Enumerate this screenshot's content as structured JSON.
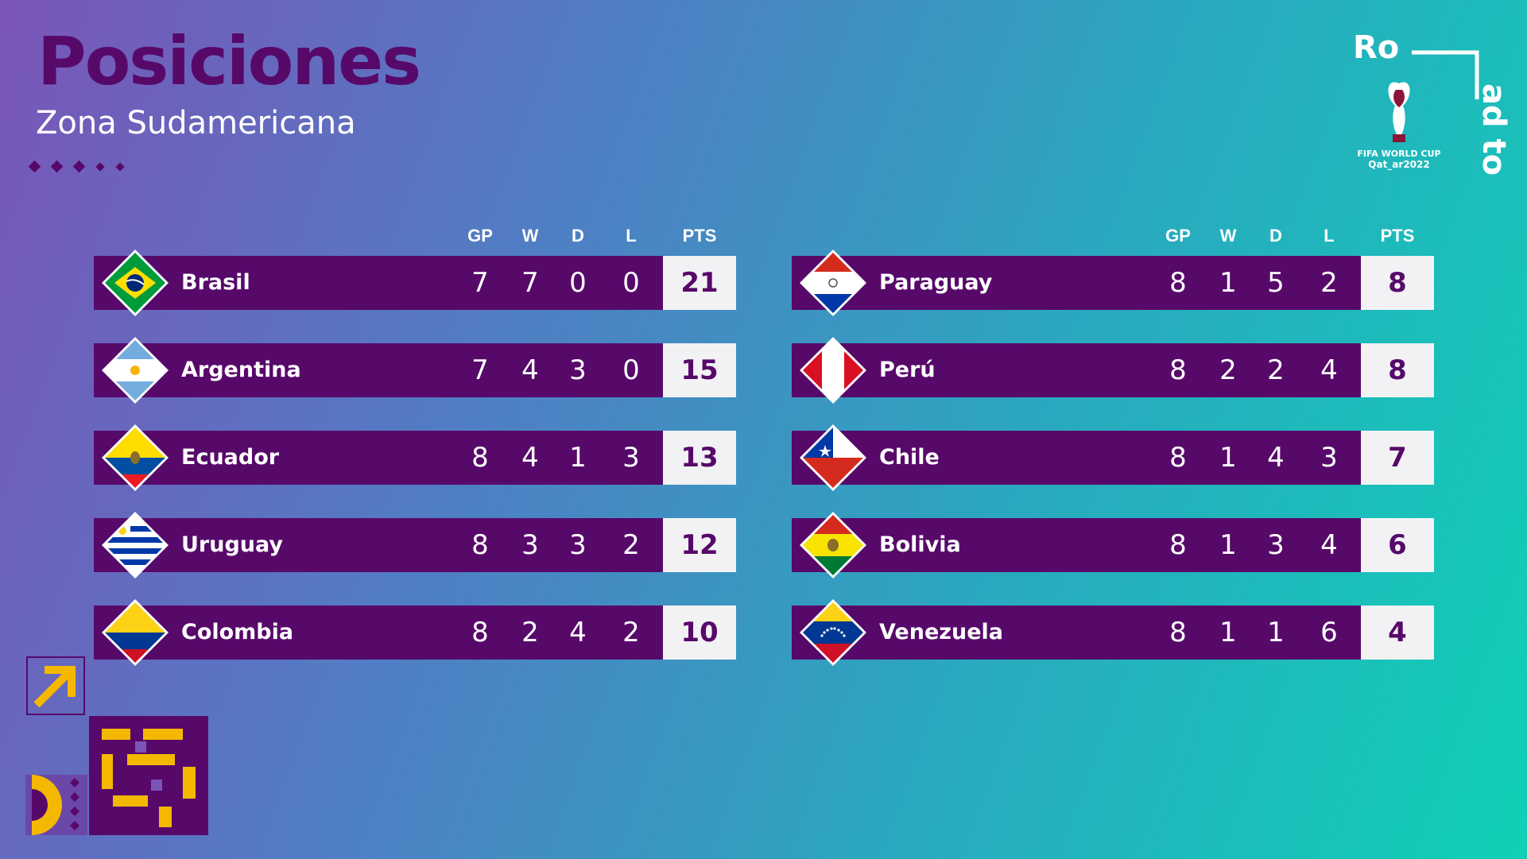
{
  "header": {
    "title": "Posiciones",
    "subtitle": "Zona Sudamericana"
  },
  "columns": {
    "gp": "GP",
    "w": "W",
    "d": "D",
    "l": "L",
    "pts": "PTS"
  },
  "logo": {
    "text_ro": "Ro",
    "text_adto": "ad to",
    "wc_line1": "FIFA WORLD CUP",
    "wc_line2": "Qat_ar2022"
  },
  "colors": {
    "accent": "#57096a",
    "points_bg": "#f2f2f4",
    "gold": "#f5b800"
  },
  "left_table": [
    {
      "team": "Brasil",
      "flag_icon": "brazil-flag-icon",
      "gp": "7",
      "w": "7",
      "d": "0",
      "l": "0",
      "pts": "21"
    },
    {
      "team": "Argentina",
      "flag_icon": "argentina-flag-icon",
      "gp": "7",
      "w": "4",
      "d": "3",
      "l": "0",
      "pts": "15"
    },
    {
      "team": "Ecuador",
      "flag_icon": "ecuador-flag-icon",
      "gp": "8",
      "w": "4",
      "d": "1",
      "l": "3",
      "pts": "13"
    },
    {
      "team": "Uruguay",
      "flag_icon": "uruguay-flag-icon",
      "gp": "8",
      "w": "3",
      "d": "3",
      "l": "2",
      "pts": "12"
    },
    {
      "team": "Colombia",
      "flag_icon": "colombia-flag-icon",
      "gp": "8",
      "w": "2",
      "d": "4",
      "l": "2",
      "pts": "10"
    }
  ],
  "right_table": [
    {
      "team": "Paraguay",
      "flag_icon": "paraguay-flag-icon",
      "gp": "8",
      "w": "1",
      "d": "5",
      "l": "2",
      "pts": "8"
    },
    {
      "team": "Perú",
      "flag_icon": "peru-flag-icon",
      "gp": "8",
      "w": "2",
      "d": "2",
      "l": "4",
      "pts": "8"
    },
    {
      "team": "Chile",
      "flag_icon": "chile-flag-icon",
      "gp": "8",
      "w": "1",
      "d": "4",
      "l": "3",
      "pts": "7"
    },
    {
      "team": "Bolivia",
      "flag_icon": "bolivia-flag-icon",
      "gp": "8",
      "w": "1",
      "d": "3",
      "l": "4",
      "pts": "6"
    },
    {
      "team": "Venezuela",
      "flag_icon": "venezuela-flag-icon",
      "gp": "8",
      "w": "1",
      "d": "1",
      "l": "6",
      "pts": "4"
    }
  ]
}
